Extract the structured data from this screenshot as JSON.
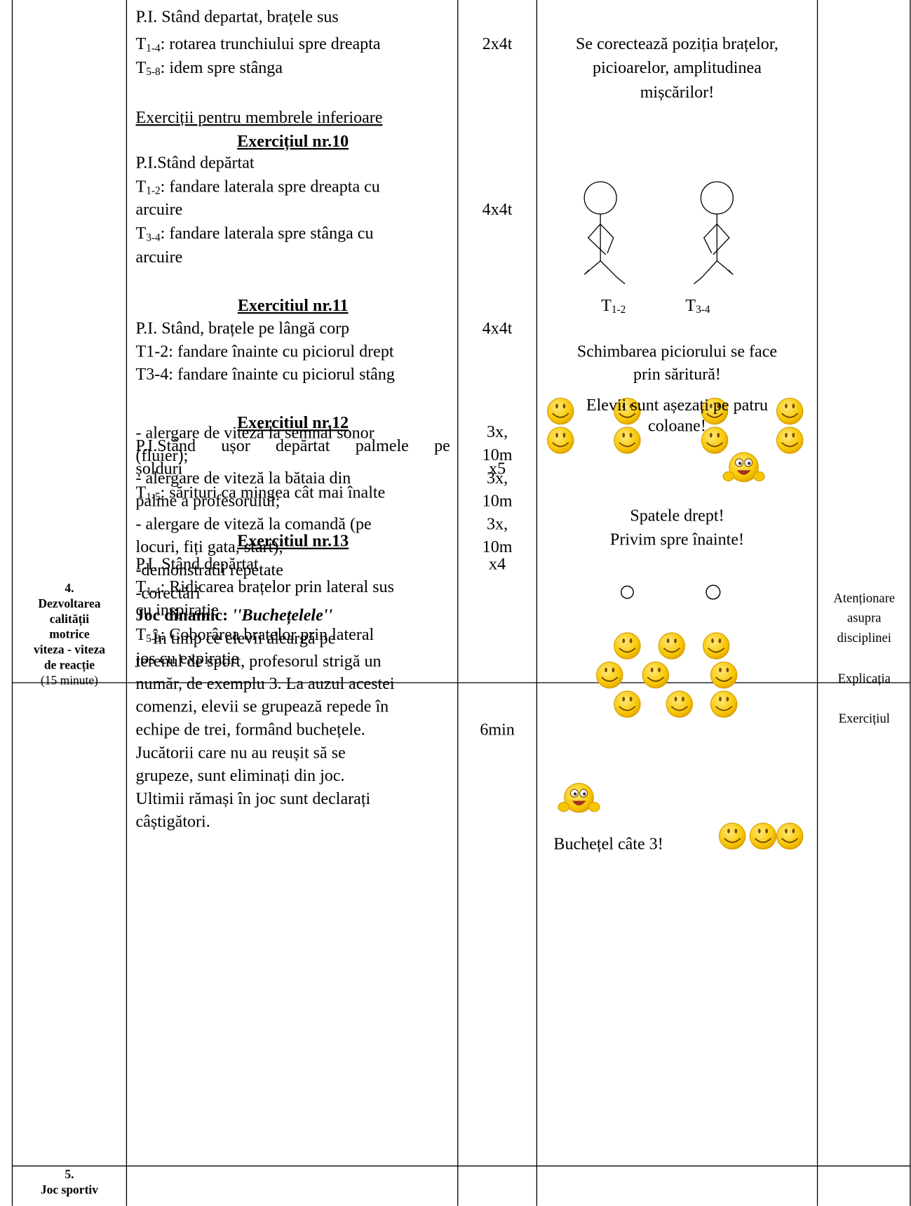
{
  "rows": [
    {
      "exercises": [
        "P.I. Stând departat, brațele sus",
        {
          "pre": "T",
          "sub": "1-4",
          "text": ": rotarea trunchiului spre dreapta"
        },
        {
          "pre": "T",
          "sub": "5-8",
          "text": ": idem spre stânga"
        },
        "Exerciții pentru membrele inferioare",
        "Exercițiul nr.10",
        "P.I.Stând depărtat",
        {
          "pre": "T",
          "sub": "1-2",
          "text": ": fandare laterala spre dreapta cu"
        },
        "arcuire",
        {
          "pre": "T",
          "sub": "3-4",
          "text": ": fandare laterala spre stânga cu"
        },
        "arcuire",
        "Exercitiul nr.11",
        "P.I. Stând, brațele pe lângă corp",
        "T1-2: fandare înainte cu piciorul drept",
        "T3-4: fandare înainte cu piciorul stâng",
        "Exercitiul nr.12",
        "P.I.Stând ușor depărtat palmele pe",
        "șolduri",
        {
          "pre": "T",
          "sub": "1-5",
          "text": ": sărituri ca mingea cât mai înalte"
        },
        "Exercitiul nr.13",
        "P.I. Stând depărtat",
        {
          "pre": "T",
          "sub": "1-4",
          "text": ": Ridicarea brațelor prin lateral sus"
        },
        "cu inspirație",
        {
          "pre": "T",
          "sub": "5-8",
          "text": ": Coborârea brațelor prin lateral"
        },
        "jos cu expirație"
      ],
      "dosage": [
        "2x4t",
        "4x4t",
        "4x4t",
        "x5",
        "x4"
      ],
      "indications": {
        "top": [
          "Se corectează poziția brațelor,",
          "picioarelor, amplitudinea",
          "mișcărilor!"
        ],
        "figure_labels": [
          {
            "pre": "T",
            "sub": "1-2"
          },
          {
            "pre": "T",
            "sub": "3-4"
          }
        ],
        "middle": [
          "Schimbarea piciorului se face",
          "prin săritură!"
        ],
        "bottom": [
          "Spatele drept!",
          "Privim spre înainte!"
        ]
      }
    },
    {
      "section": [
        "4.",
        "Dezvoltarea",
        "calității",
        "motrice",
        "viteza - viteza",
        "de reacție",
        "(15 minute)"
      ],
      "exercises": [
        "- alergare de viteză la semnal sonor",
        "(fluier);",
        "- alergare de viteză la bătaia din",
        "palme a profesorului;",
        "- alergare de viteză la comandă (pe",
        "locuri, fiți gata, start);",
        "-demonstratii repetate",
        "-corectări",
        {
          "bold": "Joc dinamic: ",
          "bolditalic": "''Buchețelele''"
        },
        "În timp ce elevii aleargă pe",
        "terenul de sport, profesorul strigă un",
        "număr, de exemplu 3. La auzul acestei",
        "comenzi, elevii se grupează repede în",
        "echipe de trei, formând buchețele.",
        "Jucătorii care nu au reușit să se",
        "grupeze, sunt eliminați din joc.",
        "Ultimii rămași în joc sunt declarați",
        "câștigători."
      ],
      "dosage": [
        "3x,",
        "10m",
        "3x,",
        "10m",
        "3x,",
        "10m",
        "6min"
      ],
      "indications": {
        "top": [
          "Elevii sunt așezați pe patru",
          "coloane!"
        ],
        "caption": "Buchețel câte 3!"
      },
      "methods": [
        "Atenționare",
        "asupra",
        "disciplinei",
        "Explicația",
        "Exercițiul"
      ]
    },
    {
      "section": [
        "5.",
        "Joc sportiv"
      ]
    }
  ]
}
